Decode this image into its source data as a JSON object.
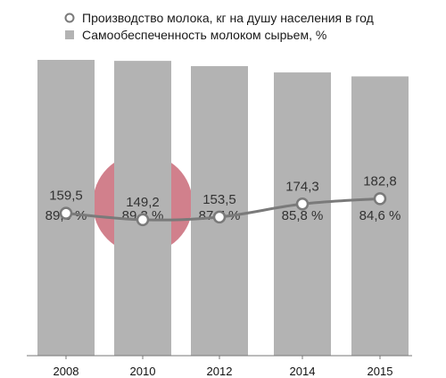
{
  "chart_data": {
    "type": "bar",
    "categories": [
      "2008",
      "2010",
      "2012",
      "2014",
      "2015"
    ],
    "series": [
      {
        "name": "Самообеспеченность молоком сырьем, %",
        "type": "bar",
        "values": [
          89.6,
          89.3,
          87.7,
          85.8,
          84.6
        ],
        "labels": [
          "89,6 %",
          "89,3 %",
          "87,7 %",
          "85,8 %",
          "84,6 %"
        ],
        "color": "#b3b3b3"
      },
      {
        "name": "Производство молока, кг на душу населения в год",
        "type": "line",
        "values": [
          159.5,
          149.2,
          153.5,
          174.3,
          182.8
        ],
        "labels": [
          "159,5",
          "149,2",
          "153,5",
          "174,3",
          "182,8"
        ],
        "color": "#7a7a7a"
      }
    ],
    "legend": {
      "position": "top",
      "items": [
        {
          "label": "Производство молока, кг на душу населения в год",
          "marker": "circle-outline"
        },
        {
          "label": "Самообеспеченность молоком сырьем, %",
          "marker": "square"
        }
      ]
    },
    "grid": false,
    "colors": {
      "bar": "#b3b3b3",
      "line": "#7a7a7a",
      "marker_fill": "#ffffff",
      "axis": "#777777",
      "watermark": "#c96a78"
    }
  }
}
